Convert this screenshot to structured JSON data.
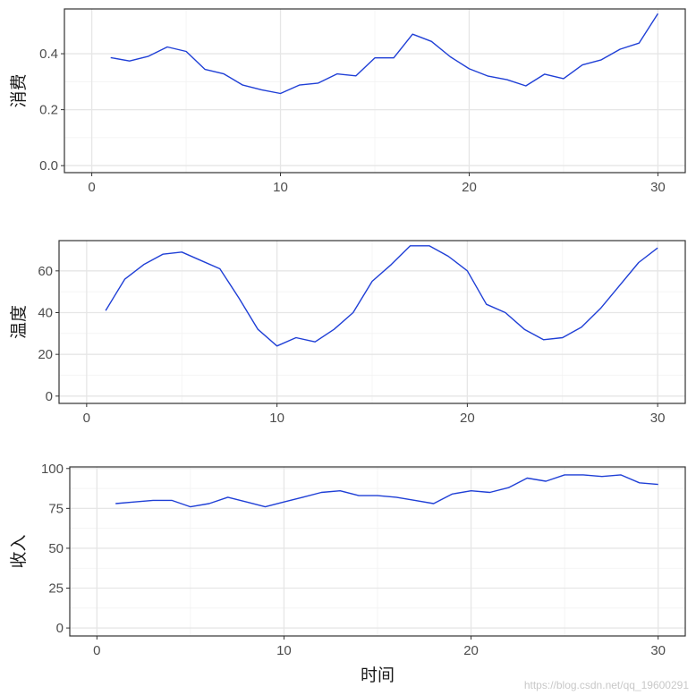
{
  "chart_data": [
    {
      "type": "line",
      "ylabel": "消费",
      "xlabel": "",
      "xlim": [
        -1.45,
        31.45
      ],
      "ylim": [
        -0.025,
        0.56
      ],
      "x_ticks": [
        0,
        10,
        20,
        30
      ],
      "y_ticks": [
        0.0,
        0.2,
        0.4
      ],
      "y_tick_labels": [
        "0.0",
        "0.2",
        "0.4"
      ],
      "grid": true,
      "color": "#1f3fd6",
      "series": [
        {
          "x": [
            1,
            2,
            3,
            4,
            5,
            6,
            7,
            8,
            9,
            10,
            11,
            12,
            13,
            14,
            15,
            16,
            17,
            18,
            19,
            20,
            21,
            22,
            23,
            24,
            25,
            26,
            27,
            28,
            29,
            30
          ],
          "values": [
            0.386,
            0.374,
            0.391,
            0.424,
            0.408,
            0.344,
            0.328,
            0.288,
            0.271,
            0.258,
            0.288,
            0.295,
            0.328,
            0.321,
            0.385,
            0.385,
            0.47,
            0.444,
            0.389,
            0.346,
            0.32,
            0.307,
            0.285,
            0.327,
            0.311,
            0.36,
            0.378,
            0.416,
            0.438,
            0.543
          ]
        }
      ]
    },
    {
      "type": "line",
      "ylabel": "温度",
      "xlabel": "",
      "xlim": [
        -1.45,
        31.45
      ],
      "ylim": [
        -3.5,
        74.5
      ],
      "x_ticks": [
        0,
        10,
        20,
        30
      ],
      "y_ticks": [
        0,
        20,
        40,
        60
      ],
      "y_tick_labels": [
        "0",
        "20",
        "40",
        "60"
      ],
      "grid": true,
      "color": "#1f3fd6",
      "series": [
        {
          "x": [
            1,
            2,
            3,
            4,
            5,
            6,
            7,
            8,
            9,
            10,
            11,
            12,
            13,
            14,
            15,
            16,
            17,
            18,
            19,
            20,
            21,
            22,
            23,
            24,
            25,
            26,
            27,
            28,
            29,
            30
          ],
          "values": [
            41,
            56,
            63,
            68,
            69,
            65,
            61,
            47,
            32,
            24,
            28,
            26,
            32,
            40,
            55,
            63,
            72,
            72,
            67,
            60,
            44,
            40,
            32,
            27,
            28,
            33,
            42,
            53,
            64,
            71
          ]
        }
      ]
    },
    {
      "type": "line",
      "ylabel": "收入",
      "xlabel": "时间",
      "xlim": [
        -1.45,
        31.45
      ],
      "ylim": [
        -5,
        101
      ],
      "x_ticks": [
        0,
        10,
        20,
        30
      ],
      "y_ticks": [
        0,
        25,
        50,
        75,
        100
      ],
      "y_tick_labels": [
        "0",
        "25",
        "50",
        "75",
        "100"
      ],
      "grid": true,
      "color": "#1f3fd6",
      "series": [
        {
          "x": [
            1,
            2,
            3,
            4,
            5,
            6,
            7,
            8,
            9,
            10,
            11,
            12,
            13,
            14,
            15,
            16,
            17,
            18,
            19,
            20,
            21,
            22,
            23,
            24,
            25,
            26,
            27,
            28,
            29,
            30
          ],
          "values": [
            78,
            79,
            80,
            80,
            76,
            78,
            82,
            79,
            76,
            79,
            82,
            85,
            86,
            83,
            83,
            82,
            80,
            78,
            84,
            86,
            85,
            88,
            94,
            92,
            96,
            96,
            95,
            96,
            91,
            90
          ]
        }
      ]
    }
  ],
  "watermark": "https://blog.csdn.net/qq_19600291"
}
